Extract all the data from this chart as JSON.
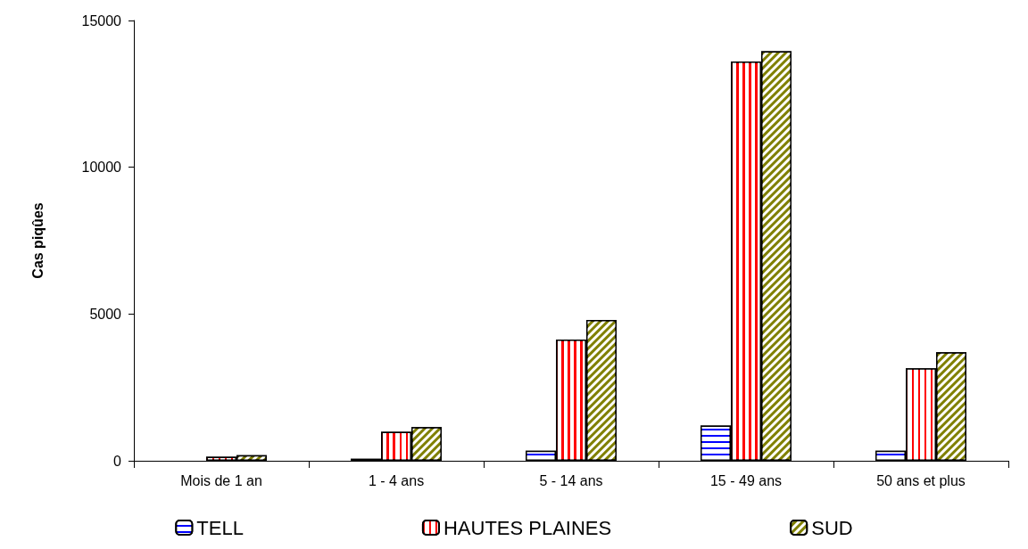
{
  "chart_data": {
    "type": "bar",
    "ylabel": "Cas piqûes",
    "categories": [
      "Mois de 1 an",
      "1 - 4 ans",
      "5 - 14 ans",
      "15 - 49 ans",
      "50 ans et plus"
    ],
    "series": [
      {
        "name": "TELL",
        "color": "#0000ff",
        "values": [
          0,
          70,
          340,
          1200,
          340
        ]
      },
      {
        "name": "HAUTES PLAINES",
        "color": "#ff0000",
        "values": [
          140,
          990,
          4130,
          13600,
          3150
        ]
      },
      {
        "name": "SUD",
        "color": "#808000",
        "values": [
          190,
          1150,
          4800,
          13950,
          3700
        ]
      }
    ],
    "ylim": [
      0,
      15000
    ],
    "yticks": [
      0,
      5000,
      10000,
      15000
    ],
    "grid": false,
    "legend": "bottom"
  }
}
